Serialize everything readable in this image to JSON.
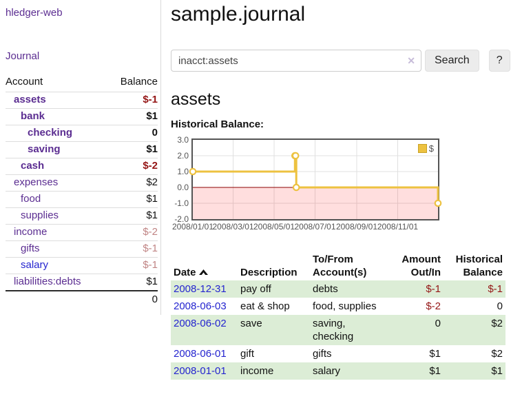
{
  "colors": {
    "link_purple": "#5b2d91",
    "link_blue": "#2424cf",
    "negative_strong": "#941515",
    "negative_soft": "#c08484",
    "series_gold": "#edc240",
    "stripe_green": "#dcedd6",
    "grid_border": "#545454"
  },
  "sidebar": {
    "brand": "hledger-web",
    "nav": [
      {
        "label": "Journal"
      }
    ],
    "table": {
      "account_header": "Account",
      "balance_header": "Balance",
      "accounts": [
        {
          "label": "assets",
          "balance": "$-1",
          "depth": 1,
          "bold": true,
          "balance_style": "negstrong"
        },
        {
          "label": "bank",
          "balance": "$1",
          "depth": 2,
          "bold": true,
          "balance_style": "pos"
        },
        {
          "label": "checking",
          "balance": "0",
          "depth": 3,
          "bold": true,
          "balance_style": "pos"
        },
        {
          "label": "saving",
          "balance": "$1",
          "depth": 3,
          "bold": true,
          "balance_style": "pos"
        },
        {
          "label": "cash",
          "balance": "$-2",
          "depth": 2,
          "bold": true,
          "balance_style": "negstrong"
        },
        {
          "label": "expenses",
          "balance": "$2",
          "depth": 1,
          "bold": false,
          "balance_style": "pos"
        },
        {
          "label": "food",
          "balance": "$1",
          "depth": 2,
          "bold": false,
          "balance_style": "pos"
        },
        {
          "label": "supplies",
          "balance": "$1",
          "depth": 2,
          "bold": false,
          "balance_style": "pos"
        },
        {
          "label": "income",
          "balance": "$-2",
          "depth": 1,
          "bold": false,
          "balance_style": "negsoft"
        },
        {
          "label": "gifts",
          "balance": "$-1",
          "depth": 2,
          "bold": false,
          "balance_style": "negsoft"
        },
        {
          "label": "salary",
          "balance": "$-1",
          "depth": 2,
          "bold": false,
          "balance_style": "negsoft",
          "link_style": "blue"
        },
        {
          "label": "liabilities:debts",
          "balance": "$1",
          "depth": 1,
          "bold": false,
          "balance_style": "pos"
        }
      ],
      "total": "0"
    }
  },
  "main": {
    "title": "sample.journal",
    "search": {
      "value": "inacct:assets",
      "clear_icon_glyph": "✕",
      "search_button": "Search",
      "help_button": "?"
    },
    "account_heading": "assets"
  },
  "chart_data": {
    "type": "line",
    "step": true,
    "title": "Historical Balance:",
    "series": [
      {
        "name": "$",
        "color": "#edc240",
        "points": [
          [
            "2008-01-01",
            1
          ],
          [
            "2008-06-01",
            2
          ],
          [
            "2008-06-02",
            2
          ],
          [
            "2008-06-03",
            0
          ],
          [
            "2008-12-31",
            -1
          ]
        ]
      }
    ],
    "xlim": [
      "2008-01-01",
      "2008-12-31"
    ],
    "ylim": [
      -2,
      3
    ],
    "x_ticks": [
      "2008/01/01",
      "2008/03/01",
      "2008/05/01",
      "2008/07/01",
      "2008/09/01",
      "2008/11/01"
    ],
    "y_ticks": [
      "3.0",
      "2.0",
      "1.0",
      "0.0",
      "-1.0",
      "-2.0"
    ],
    "legend": {
      "position": "top-right",
      "label": "$"
    },
    "negative_region_fill": "rgba(255,0,0,0.13)",
    "zero_line_color": "#8b0000",
    "grid": true
  },
  "register": {
    "headers": [
      {
        "label": "Date",
        "sortable": true,
        "sort_indicator": "caret-up"
      },
      {
        "label": "Description"
      },
      {
        "label": "To/From Account(s)"
      },
      {
        "label": "Amount Out/In",
        "align": "right"
      },
      {
        "label": "Historical Balance",
        "align": "right"
      }
    ],
    "rows": [
      {
        "date": "2008-12-31",
        "description": "pay off",
        "accounts": "debts",
        "amount": "$-1",
        "balance": "$-1",
        "amount_negative": true,
        "balance_negative": true
      },
      {
        "date": "2008-06-03",
        "description": "eat & shop",
        "accounts": "food, supplies",
        "amount": "$-2",
        "balance": "0",
        "amount_negative": true,
        "balance_negative": false
      },
      {
        "date": "2008-06-02",
        "description": "save",
        "accounts": "saving, checking",
        "amount": "0",
        "balance": "$2",
        "amount_negative": false,
        "balance_negative": false
      },
      {
        "date": "2008-06-01",
        "description": "gift",
        "accounts": "gifts",
        "amount": "$1",
        "balance": "$2",
        "amount_negative": false,
        "balance_negative": false
      },
      {
        "date": "2008-01-01",
        "description": "income",
        "accounts": "salary",
        "amount": "$1",
        "balance": "$1",
        "amount_negative": false,
        "balance_negative": false
      }
    ]
  }
}
